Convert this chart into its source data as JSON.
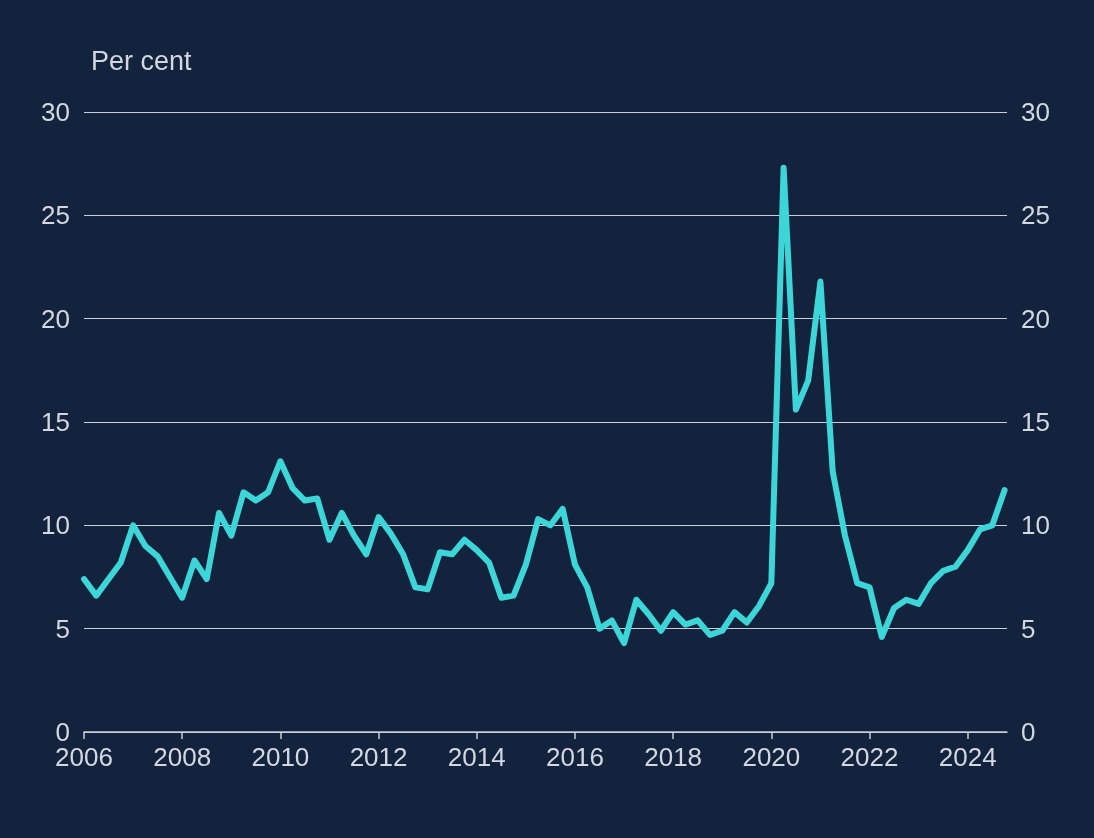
{
  "chart_data": {
    "type": "line",
    "ylabel": "Per cent",
    "x": [
      2006,
      2006.25,
      2006.5,
      2006.75,
      2007,
      2007.25,
      2007.5,
      2007.75,
      2008,
      2008.25,
      2008.5,
      2008.75,
      2009,
      2009.25,
      2009.5,
      2009.75,
      2010,
      2010.25,
      2010.5,
      2010.75,
      2011,
      2011.25,
      2011.5,
      2011.75,
      2012,
      2012.25,
      2012.5,
      2012.75,
      2013,
      2013.25,
      2013.5,
      2013.75,
      2014,
      2014.25,
      2014.5,
      2014.75,
      2015,
      2015.25,
      2015.5,
      2015.75,
      2016,
      2016.25,
      2016.5,
      2016.75,
      2017,
      2017.25,
      2017.5,
      2017.75,
      2018,
      2018.25,
      2018.5,
      2018.75,
      2019,
      2019.25,
      2019.5,
      2019.75,
      2020,
      2020.25,
      2020.5,
      2020.75,
      2021,
      2021.25,
      2021.5,
      2021.75,
      2022,
      2022.25,
      2022.5,
      2022.75,
      2023,
      2023.25,
      2023.5,
      2023.75,
      2024,
      2024.25,
      2024.5,
      2024.75
    ],
    "series": [
      {
        "color": "#3dd6d8",
        "values": [
          7.4,
          6.6,
          7.4,
          8.2,
          10.0,
          9.0,
          8.5,
          7.5,
          6.5,
          8.3,
          7.4,
          10.6,
          9.5,
          11.6,
          11.2,
          11.6,
          13.1,
          11.8,
          11.2,
          11.3,
          9.3,
          10.6,
          9.5,
          8.6,
          10.4,
          9.6,
          8.6,
          7.0,
          6.9,
          8.7,
          8.6,
          9.3,
          8.8,
          8.2,
          6.5,
          6.6,
          8.1,
          10.3,
          10.0,
          10.8,
          8.1,
          7.0,
          5.0,
          5.4,
          4.3,
          6.4,
          5.7,
          4.9,
          5.8,
          5.2,
          5.4,
          4.7,
          4.9,
          5.8,
          5.3,
          6.1,
          7.2,
          27.3,
          15.6,
          17.0,
          21.8,
          12.6,
          9.5,
          7.2,
          7.0,
          4.6,
          6.0,
          6.4,
          6.2,
          7.2,
          7.8,
          8.0,
          8.8,
          9.8,
          10.0,
          11.7
        ]
      }
    ],
    "xlim": [
      2006,
      2024.8
    ],
    "xticks": [
      2006,
      2008,
      2010,
      2012,
      2014,
      2016,
      2018,
      2020,
      2022,
      2024
    ],
    "ylim": [
      0,
      30
    ],
    "yticks": [
      0,
      5,
      10,
      15,
      20,
      25,
      30
    ],
    "y2lim": [
      0,
      30
    ],
    "y2ticks": [
      0,
      5,
      10,
      15,
      20,
      25,
      30
    ],
    "grid": "y",
    "marker": "none",
    "line_style": "solid"
  }
}
